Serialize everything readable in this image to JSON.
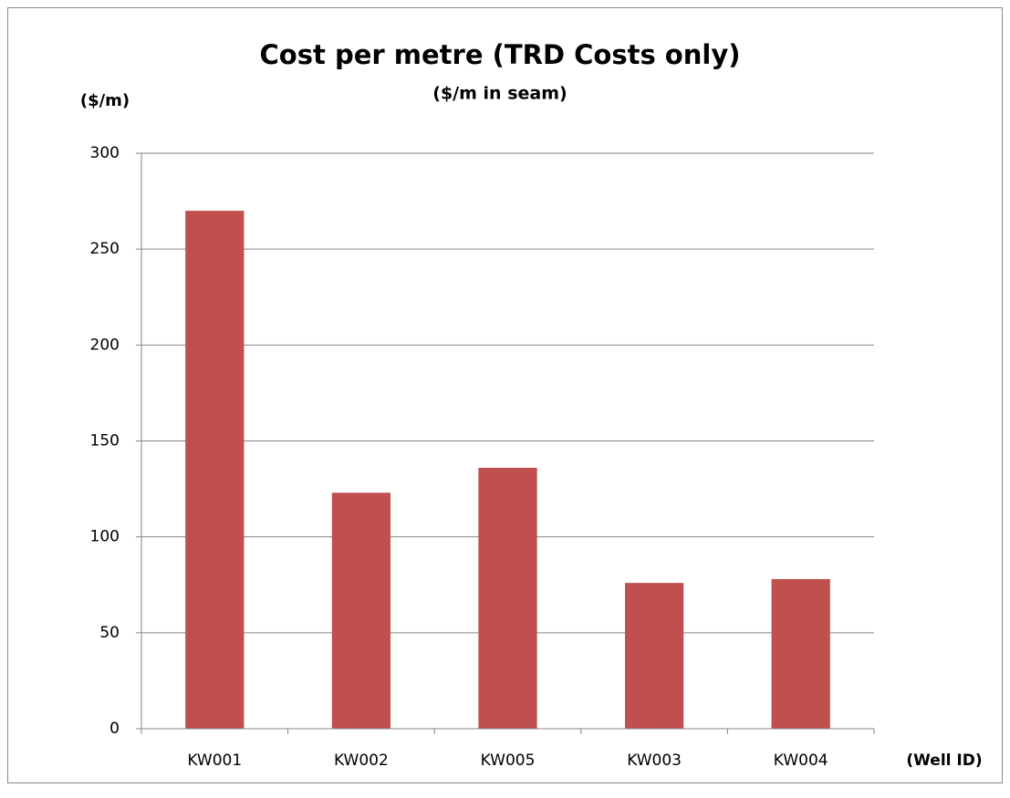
{
  "chart_data": {
    "type": "bar",
    "title": "Cost per metre (TRD Costs only)",
    "subtitle": "($/m in seam)",
    "y_label": "($/m)",
    "x_label": "(Well ID)",
    "categories": [
      "KW001",
      "KW002",
      "KW005",
      "KW003",
      "KW004"
    ],
    "values": [
      270,
      123,
      136,
      76,
      78
    ],
    "color": "#c0504d",
    "ylim": [
      0,
      300
    ],
    "yticks": [
      0,
      50,
      100,
      150,
      200,
      250,
      300
    ],
    "grid": true
  }
}
